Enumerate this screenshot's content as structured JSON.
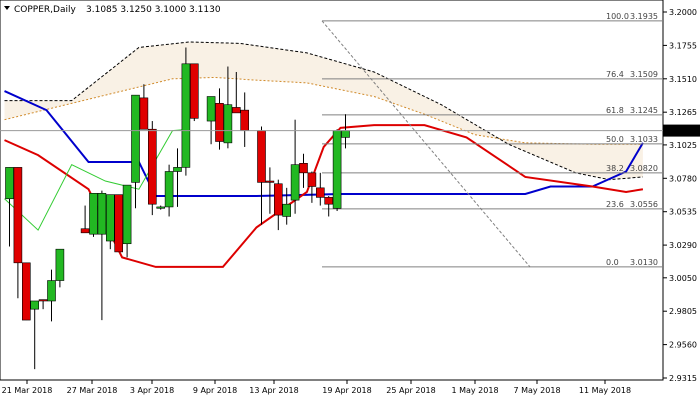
{
  "header": {
    "symbol": "COPPER,Daily",
    "ohlc": "3.1085 3.1250 3.1000 3.1130"
  },
  "current_price_label": "3.1130",
  "colors": {
    "bull": "#22b822",
    "bear": "#e00000",
    "kijun": "#0000cc",
    "tenkan": "#dd0000",
    "chikou": "#33cc33",
    "cloud": "#d08a2a",
    "fibo": "#808080",
    "grid": "#c8c8c8"
  },
  "chart_data": {
    "type": "candlestick",
    "ylim": [
      2.9315,
      3.2
    ]
  },
  "y_ticks": [
    "3.2000",
    "3.1755",
    "3.1510",
    "3.1265",
    "3.1025",
    "3.0780",
    "3.0535",
    "3.0290",
    "3.0050",
    "2.9805",
    "2.9560",
    "2.9315"
  ],
  "x_ticks": [
    "21 Mar 2018",
    "27 Mar 2018",
    "3 Apr 2018",
    "9 Apr 2018",
    "13 Apr 2018",
    "19 Apr 2018",
    "25 Apr 2018",
    "1 May 2018",
    "7 May 2018",
    "11 May 2018"
  ],
  "fibonacci": [
    {
      "label": "100.0",
      "price": "3.1935"
    },
    {
      "label": "76.4",
      "price": "3.1509"
    },
    {
      "label": "61.8",
      "price": "3.1245"
    },
    {
      "label": "50.0",
      "price": "3.1033"
    },
    {
      "label": "38.2",
      "price": "3.0820"
    },
    {
      "label": "23.6",
      "price": "3.0556"
    },
    {
      "label": "0.0",
      "price": "3.0130"
    }
  ]
}
